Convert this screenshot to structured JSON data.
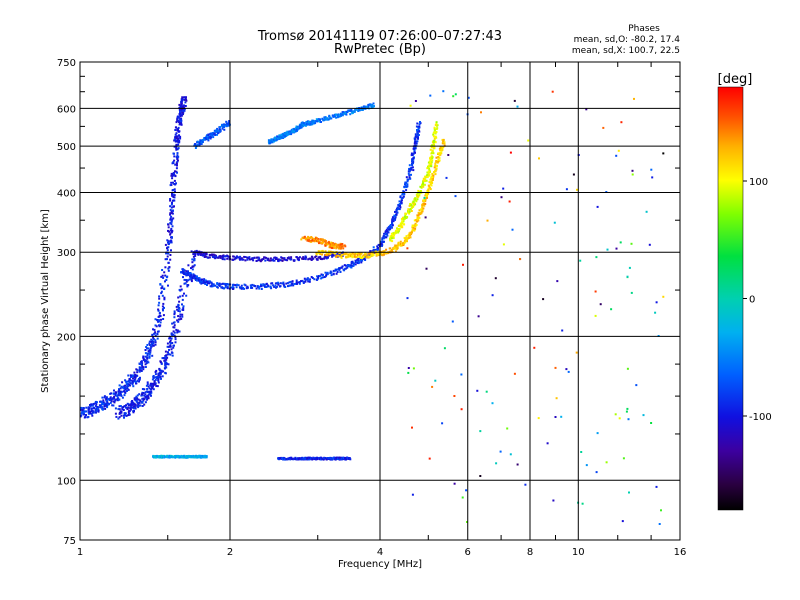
{
  "chart_data": {
    "type": "scatter",
    "title": "Tromsø 20141119 07:26:00–07:27:43",
    "subtitle": "RwPretec (Bp)",
    "xlabel": "Frequency [MHz]",
    "ylabel": "Stationary phase Virtual Height [km]",
    "xscale": "log",
    "yscale": "log",
    "xlim": [
      1,
      16
    ],
    "ylim": [
      75,
      750
    ],
    "grid": true,
    "x_ticks": [
      {
        "value": 1,
        "label": "1"
      },
      {
        "value": 2,
        "label": "2"
      },
      {
        "value": 4,
        "label": "4"
      },
      {
        "value": 6,
        "label": "6"
      },
      {
        "value": 8,
        "label": "8"
      },
      {
        "value": 10,
        "label": "10"
      },
      {
        "value": 16,
        "label": "16"
      }
    ],
    "y_ticks": [
      {
        "value": 75,
        "label": "75"
      },
      {
        "value": 100,
        "label": "100"
      },
      {
        "value": 200,
        "label": "200"
      },
      {
        "value": 300,
        "label": "300"
      },
      {
        "value": 400,
        "label": "400"
      },
      {
        "value": 500,
        "label": "500"
      },
      {
        "value": 600,
        "label": "600"
      },
      {
        "value": 750,
        "label": "750"
      }
    ],
    "phase_stats": {
      "heading": "Phases",
      "line_o": "mean, sd,O: -80.2, 17.4",
      "line_x": "mean, sd,X: 100.7, 22.5"
    },
    "colorbar": {
      "title": "[deg]",
      "range": [
        -180,
        180
      ],
      "ticks": [
        {
          "value": 100,
          "label": "100"
        },
        {
          "value": 0,
          "label": "0"
        },
        {
          "value": -100,
          "label": "-100"
        }
      ]
    },
    "traces": [
      {
        "freq": [
          1.0,
          1.05,
          1.1,
          1.15,
          1.2,
          1.25,
          1.3,
          1.35,
          1.4,
          1.45,
          1.5
        ],
        "height": [
          138,
          140,
          143,
          147,
          152,
          158,
          166,
          178,
          195,
          225,
          290
        ],
        "phase": -90,
        "spread": 0.035
      },
      {
        "freq": [
          1.2,
          1.25,
          1.3,
          1.35,
          1.4,
          1.45,
          1.5,
          1.55,
          1.6,
          1.7
        ],
        "height": [
          138,
          141,
          145,
          150,
          158,
          168,
          182,
          205,
          240,
          300
        ],
        "phase": -95,
        "spread": 0.035
      },
      {
        "freq": [
          1.5,
          1.52,
          1.54,
          1.56,
          1.58,
          1.6,
          1.62
        ],
        "height": [
          290,
          350,
          420,
          500,
          560,
          600,
          625
        ],
        "phase": -100,
        "spread": 0.025
      },
      {
        "freq": [
          1.6,
          1.7,
          1.8,
          2.0,
          2.3,
          2.6,
          3.0,
          3.4,
          3.7,
          4.0,
          4.2,
          4.4,
          4.6,
          4.7,
          4.8
        ],
        "height": [
          275,
          265,
          258,
          254,
          254,
          257,
          265,
          278,
          290,
          310,
          340,
          380,
          440,
          500,
          560
        ],
        "phase": -85,
        "spread": 0.015
      },
      {
        "freq": [
          1.7,
          1.8,
          2.0,
          2.3,
          2.6,
          3.0,
          3.4
        ],
        "height": [
          300,
          295,
          292,
          290,
          290,
          292,
          298
        ],
        "phase": -105,
        "spread": 0.012
      },
      {
        "freq": [
          3.0,
          3.4,
          3.7,
          4.0,
          4.3,
          4.6,
          4.8,
          5.0,
          5.2,
          5.4
        ],
        "height": [
          300,
          295,
          295,
          298,
          305,
          325,
          360,
          400,
          460,
          520
        ],
        "phase": 120,
        "spread": 0.015
      },
      {
        "freq": [
          4.2,
          4.4,
          4.6,
          4.8,
          5.0,
          5.1,
          5.2
        ],
        "height": [
          320,
          340,
          370,
          400,
          440,
          490,
          560
        ],
        "phase": 95,
        "spread": 0.015
      },
      {
        "freq": [
          2.8,
          3.0,
          3.2,
          3.4
        ],
        "height": [
          320,
          318,
          310,
          308
        ],
        "phase": 140,
        "spread": 0.015
      },
      {
        "freq": [
          2.4,
          2.5,
          2.6,
          2.7,
          2.8,
          3.0,
          3.3,
          3.6,
          3.9
        ],
        "height": [
          510,
          520,
          530,
          540,
          555,
          565,
          580,
          595,
          610
        ],
        "phase": -55,
        "spread": 0.012
      },
      {
        "freq": [
          1.7,
          1.8,
          1.9,
          2.0
        ],
        "height": [
          500,
          520,
          540,
          560
        ],
        "phase": -70,
        "spread": 0.015
      },
      {
        "freq": [
          1.4,
          1.5,
          1.6,
          1.7,
          1.8
        ],
        "height": [
          112,
          112,
          112,
          112,
          112
        ],
        "phase": -30,
        "spread": 0.006
      },
      {
        "freq": [
          2.5,
          2.7,
          2.9,
          3.1,
          3.3,
          3.5
        ],
        "height": [
          111,
          111,
          111,
          111,
          111,
          111
        ],
        "phase": -90,
        "spread": 0.006
      }
    ]
  }
}
